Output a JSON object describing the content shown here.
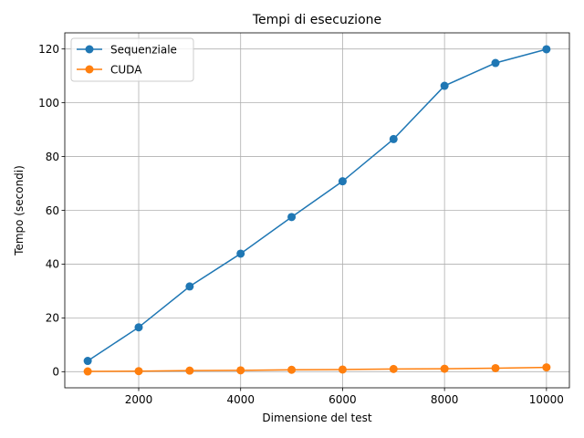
{
  "chart_data": {
    "type": "line",
    "title": "Tempi di esecuzione",
    "xlabel": "Dimensione del test",
    "ylabel": "Tempo (secondi)",
    "x": [
      1000,
      2000,
      3000,
      4000,
      5000,
      6000,
      7000,
      8000,
      9000,
      10000
    ],
    "xlim": [
      550,
      10450
    ],
    "ylim": [
      -6,
      126
    ],
    "xticks": [
      2000,
      4000,
      6000,
      8000,
      10000
    ],
    "yticks": [
      0,
      20,
      40,
      60,
      80,
      100,
      120
    ],
    "grid": true,
    "legend_position": "top-left",
    "series": [
      {
        "name": "Sequenziale",
        "color": "#1f77b4",
        "marker": "circle",
        "values": [
          4.0,
          16.5,
          31.7,
          43.9,
          57.5,
          70.8,
          86.5,
          106.3,
          114.8,
          119.9
        ]
      },
      {
        "name": "CUDA",
        "color": "#ff7f0e",
        "marker": "circle",
        "values": [
          0.1,
          0.2,
          0.4,
          0.5,
          0.7,
          0.8,
          1.0,
          1.1,
          1.3,
          1.6
        ]
      }
    ]
  }
}
